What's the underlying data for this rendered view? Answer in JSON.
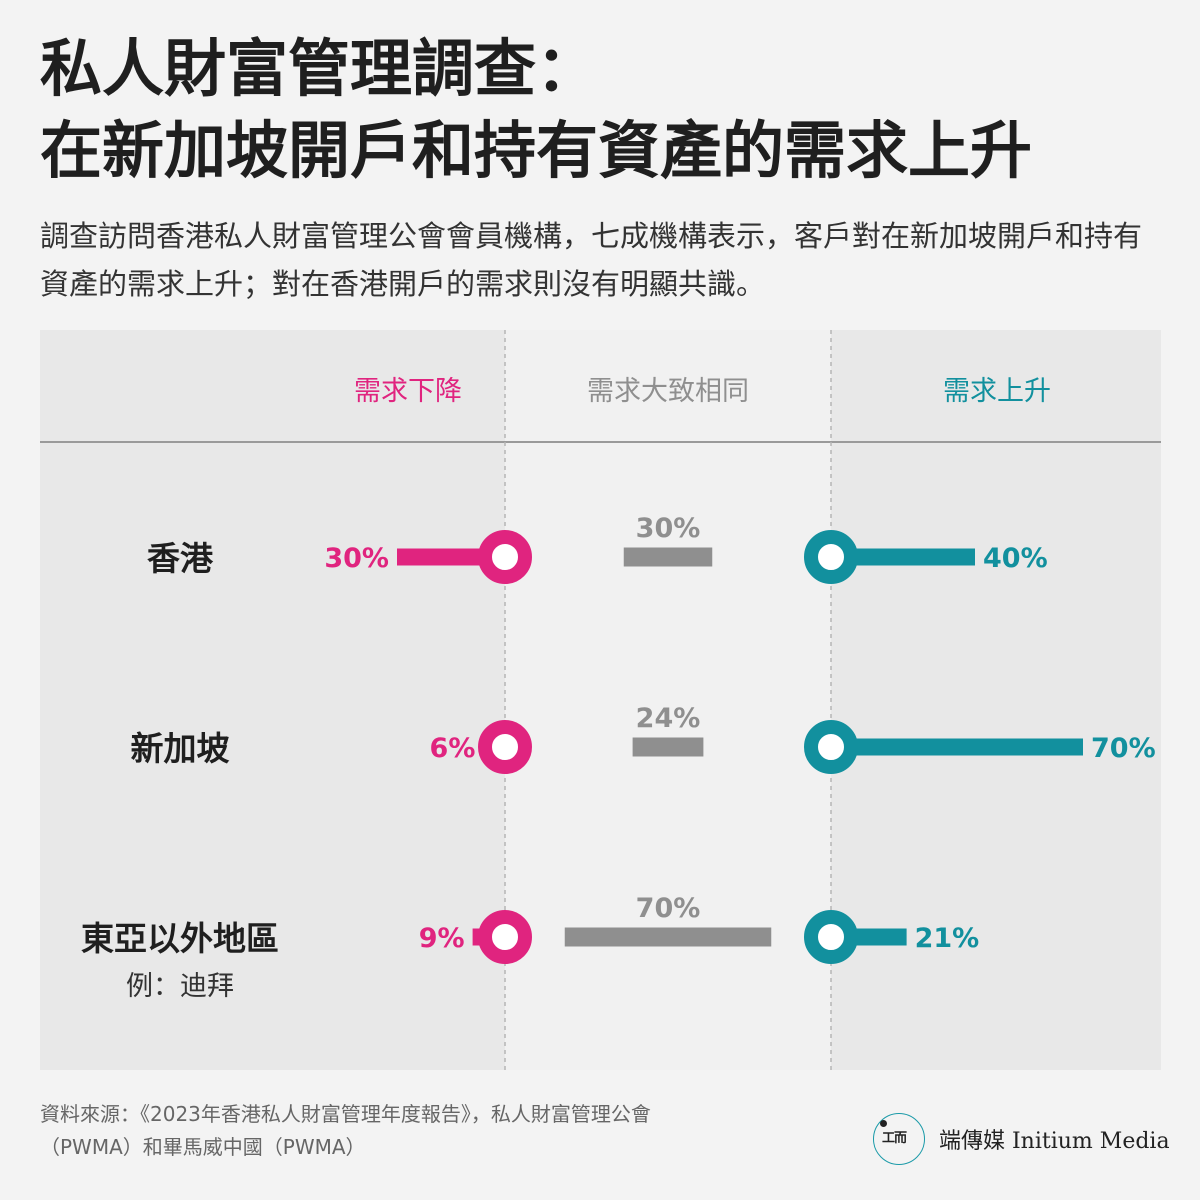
{
  "title_lines": [
    "私人財富管理調查：",
    "在新加坡開戶和持有資產的需求上升"
  ],
  "subtitle": "調查訪問香港私人財富管理公會會員機構，七成機構表示，客戶對在新加坡開戶和持有資產的需求上升；對在香港開戶的需求則沒有明顯共識。",
  "colors": {
    "decrease": "#e0247f",
    "same": "#8f8f8f",
    "increase": "#12909e",
    "panel_side": "#e8e8e8",
    "panel_mid": "#f1f1f1"
  },
  "chart_data": {
    "type": "bar",
    "columns": [
      "需求下降",
      "需求大致相同",
      "需求上升"
    ],
    "categories": [
      {
        "name": "香港",
        "note": ""
      },
      {
        "name": "新加坡",
        "note": ""
      },
      {
        "name": "東亞以外地區",
        "note": "例：迪拜"
      }
    ],
    "series": [
      {
        "name": "需求下降",
        "values": [
          30,
          6,
          9
        ]
      },
      {
        "name": "需求大致相同",
        "values": [
          30,
          24,
          70
        ]
      },
      {
        "name": "需求上升",
        "values": [
          40,
          70,
          21
        ]
      }
    ],
    "unit": "%"
  },
  "source": {
    "line1": "資料來源：《2023年香港私人財富管理年度報告》，私人財富管理公會",
    "line2": "（PWMA）和畢馬威中國（PWMA）"
  },
  "logo": {
    "glyph": "工而",
    "name": "端傳媒 Initium Media"
  }
}
